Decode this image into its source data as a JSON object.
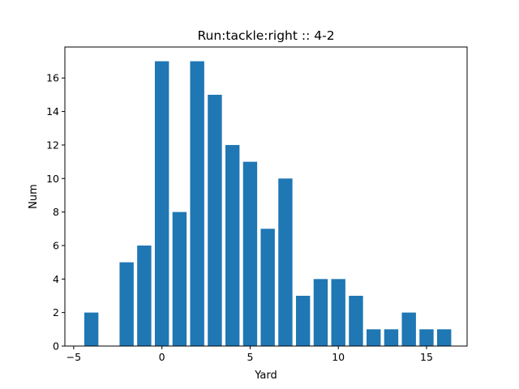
{
  "chart_data": {
    "type": "bar",
    "title": "Run:tackle:right :: 4-2",
    "xlabel": "Yard",
    "ylabel": "Num",
    "x": [
      -4,
      -2,
      -1,
      0,
      1,
      2,
      3,
      4,
      5,
      6,
      7,
      8,
      9,
      10,
      11,
      12,
      13,
      14,
      15,
      16
    ],
    "values": [
      2,
      5,
      6,
      17,
      8,
      17,
      15,
      12,
      11,
      7,
      10,
      3,
      4,
      4,
      3,
      1,
      1,
      2,
      1,
      1
    ],
    "xlim": [
      -5.5,
      17.3
    ],
    "ylim": [
      0,
      17.85
    ],
    "xticks": [
      -5,
      0,
      5,
      10,
      15
    ],
    "yticks": [
      0,
      2,
      4,
      6,
      8,
      10,
      12,
      14,
      16
    ],
    "bar_width": 0.8,
    "grid": false,
    "colors": {
      "bar": "#1f77b4",
      "axis": "#000000"
    }
  }
}
